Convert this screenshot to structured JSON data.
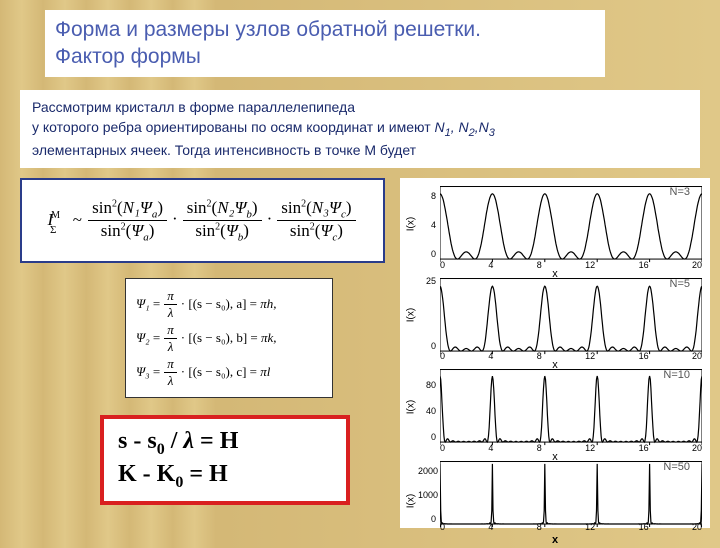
{
  "title": {
    "line1": "Форма и размеры узлов обратной решетки.",
    "line2": "Фактор формы",
    "color": "#4a5db0",
    "fontsize": 21
  },
  "intro": {
    "line1": "Рассмотрим кристалл в форме параллелепипеда",
    "line2_a": "у которого ребра ориентированы по осям координат и имеют ",
    "line2_b": "N",
    "line2_c": ", N",
    "line2_d": ",N",
    "line3": "элементарных ячеек. Тогда интенсивность в точке M будет",
    "sub1": "1",
    "sub2": "2",
    "sub3": "3",
    "color": "#1a2a6b",
    "fontsize": 14
  },
  "main_formula": {
    "lhs": "I",
    "lhs_sup": "M",
    "lhs_sub": "Σ",
    "tilde": "~",
    "terms": [
      {
        "num_N": "N₁",
        "num_psi": "Ψ",
        "num_psi_sub": "a",
        "den_psi": "Ψ",
        "den_psi_sub": "a"
      },
      {
        "num_N": "N₂",
        "num_psi": "Ψ",
        "num_psi_sub": "b",
        "den_psi": "Ψ",
        "den_psi_sub": "b"
      },
      {
        "num_N": "N₃",
        "num_psi": "Ψ",
        "num_psi_sub": "c",
        "den_psi": "Ψ",
        "den_psi_sub": "c"
      }
    ],
    "border_color": "#2a3c8a"
  },
  "psi_definitions": {
    "lines": [
      {
        "psi": "Ψ₁",
        "pi": "π",
        "lam": "λ",
        "vec": "[(s − s₀), a]",
        "rhs": "πh,"
      },
      {
        "psi": "Ψ₂",
        "pi": "π",
        "lam": "λ",
        "vec": "[(s − s₀), b]",
        "rhs": "πk,"
      },
      {
        "psi": "Ψ₃",
        "pi": "π",
        "lam": "λ",
        "vec": "[(s − s₀), c]",
        "rhs": "πl"
      }
    ]
  },
  "red_box": {
    "line1": "s - s₀ / λ = H",
    "line2_a": "K - K",
    "line2_sub": "0",
    "line2_b": " = H",
    "border_color": "#d92020"
  },
  "charts": {
    "xlim": [
      0,
      20
    ],
    "xticks": [
      0,
      4,
      8,
      12,
      16,
      20
    ],
    "xlabel": "x",
    "period": 4,
    "panels": [
      {
        "N": 3,
        "label": "N=3",
        "ylabel": "I(x)",
        "ylim": [
          0,
          10
        ],
        "yticks": [
          0,
          4,
          8
        ],
        "peak": 9,
        "secondary": 1.0
      },
      {
        "N": 5,
        "label": "N=5",
        "ylabel": "I(x)",
        "ylim": [
          0,
          28
        ],
        "yticks": [
          0,
          25
        ],
        "peak": 25,
        "secondary": 1.2
      },
      {
        "N": 10,
        "label": "N=10",
        "ylabel": "I(x)",
        "ylim": [
          0,
          110
        ],
        "yticks": [
          0,
          40,
          80
        ],
        "peak": 100,
        "secondary": 1.0
      },
      {
        "N": 50,
        "label": "N=50",
        "ylabel": "I(x)",
        "ylim": [
          0,
          2600
        ],
        "yticks": [
          0,
          1000,
          2000
        ],
        "peak": 2500,
        "secondary": 0,
        "bold_xlabel": true
      }
    ],
    "line_color": "#000000",
    "axis_color": "#000000",
    "background_color": "#ffffff"
  }
}
